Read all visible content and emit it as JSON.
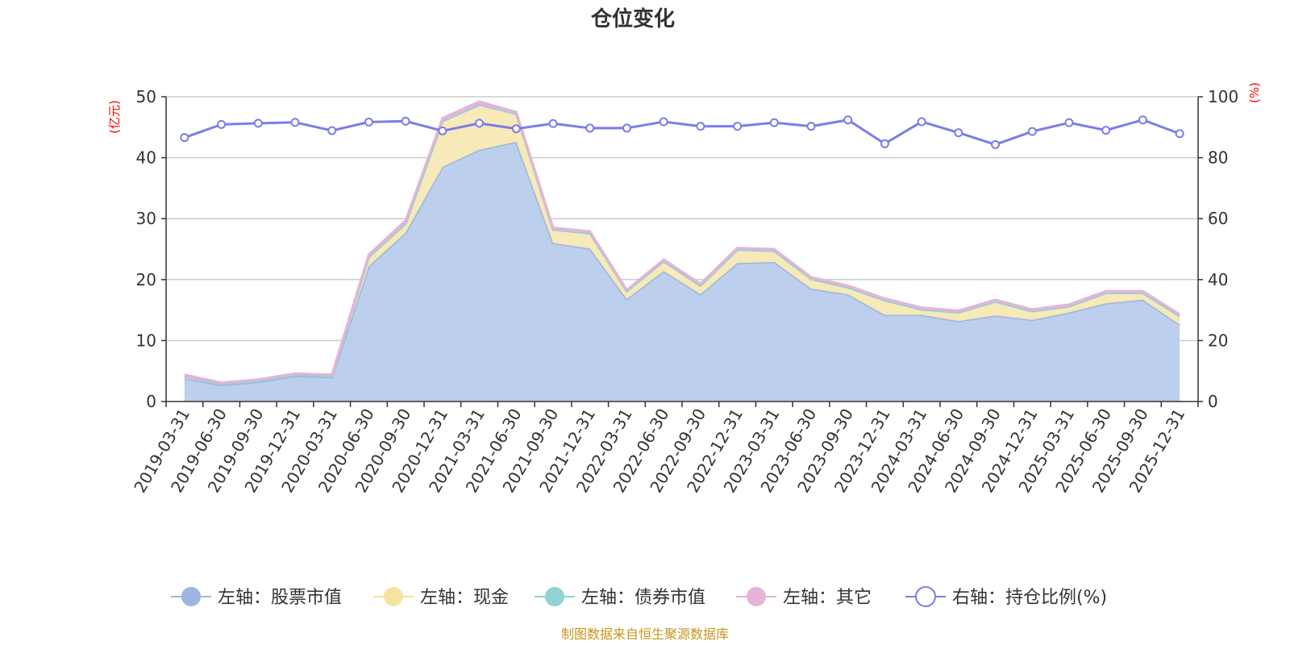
{
  "chart_data": {
    "type": "area",
    "title": "仓位变化",
    "left_unit": "(亿元)",
    "right_unit": "(%)",
    "left_axis": {
      "min": 0,
      "max": 50,
      "ticks": [
        "0",
        "10",
        "20",
        "30",
        "40",
        "50"
      ]
    },
    "right_axis": {
      "min": 0,
      "max": 100,
      "ticks": [
        "0",
        "20",
        "40",
        "60",
        "80",
        "100"
      ]
    },
    "categories": [
      "2019-03-31",
      "2019-06-30",
      "2019-09-30",
      "2019-12-31",
      "2020-03-31",
      "2020-06-30",
      "2020-09-30",
      "2020-12-31",
      "2021-03-31",
      "2021-06-30",
      "2021-09-30",
      "2021-12-31",
      "2022-03-31",
      "2022-06-30",
      "2022-09-30",
      "2022-12-31",
      "2023-03-31",
      "2023-06-30",
      "2023-09-30",
      "2023-12-31",
      "2024-03-31",
      "2024-06-30",
      "2024-09-30",
      "2024-12-31",
      "2025-03-31",
      "2025-06-30",
      "2025-09-30",
      "2025-12-31"
    ],
    "series": [
      {
        "name": "左轴：股票市值",
        "axis": "left",
        "color": "#9bb6e0",
        "fill": "#b8cceb",
        "values": [
          3.8,
          2.7,
          3.2,
          4.2,
          4.0,
          22.2,
          27.7,
          38.5,
          41.3,
          42.6,
          26.0,
          25.1,
          16.8,
          21.4,
          17.6,
          22.7,
          22.9,
          18.5,
          17.6,
          14.2,
          14.2,
          13.2,
          14.1,
          13.4,
          14.6,
          16.1,
          16.7,
          12.6
        ]
      },
      {
        "name": "左轴：现金",
        "axis": "left",
        "color": "#f7e3a0",
        "fill": "#f8e8b4",
        "values": [
          0.3,
          0.2,
          0.2,
          0.2,
          0.2,
          1.5,
          1.5,
          7.5,
          7.4,
          4.6,
          2.2,
          2.5,
          1.3,
          1.6,
          1.4,
          2.2,
          1.8,
          1.6,
          1.1,
          2.4,
          0.9,
          1.4,
          2.3,
          1.4,
          1.0,
          1.7,
          1.1,
          1.4
        ]
      },
      {
        "name": "左轴：债券市值",
        "axis": "left",
        "color": "#8fd3d3",
        "fill": "#8fd3d3",
        "values": [
          0,
          0,
          0,
          0,
          0,
          0,
          0,
          0,
          0,
          0,
          0,
          0,
          0,
          0,
          0,
          0,
          0,
          0,
          0,
          0,
          0,
          0,
          0,
          0,
          0,
          0,
          0,
          0
        ]
      },
      {
        "name": "左轴：其它",
        "axis": "left",
        "color": "#e6b3da",
        "fill": "#e6b3da",
        "values": [
          0.3,
          0.2,
          0.2,
          0.2,
          0.2,
          0.4,
          0.5,
          0.5,
          0.5,
          0.3,
          0.3,
          0.3,
          0.2,
          0.3,
          0.3,
          0.3,
          0.3,
          0.3,
          0.3,
          0.3,
          0.3,
          0.3,
          0.3,
          0.3,
          0.3,
          0.3,
          0.3,
          0.3
        ]
      },
      {
        "name": "右轴：持仓比例(%)",
        "axis": "right",
        "color": "#7b7de8",
        "values": [
          86.6,
          90.9,
          91.3,
          91.6,
          88.9,
          91.7,
          92.0,
          88.8,
          91.3,
          89.5,
          91.2,
          89.7,
          89.7,
          91.8,
          90.3,
          90.3,
          91.5,
          90.3,
          92.4,
          84.6,
          91.8,
          88.2,
          84.3,
          88.6,
          91.5,
          89.0,
          92.4,
          87.9
        ]
      }
    ],
    "legend_position": "bottom",
    "grid": true
  },
  "footer": {
    "source": "制图数据来自恒生聚源数据库"
  }
}
